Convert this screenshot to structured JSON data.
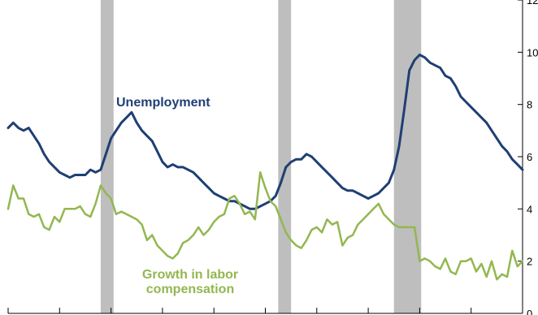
{
  "chart_data": {
    "type": "line",
    "title": "",
    "xlabel": "",
    "ylabel": "",
    "ylim": [
      0,
      12
    ],
    "yticks": [
      0,
      2,
      4,
      6,
      8,
      10,
      12
    ],
    "ytick_labels": [
      "0",
      "2",
      "4",
      "6",
      "8",
      "10",
      "12"
    ],
    "xlim": [
      0,
      100
    ],
    "x_major_ticks": [
      0,
      10,
      20,
      30,
      40,
      50,
      60,
      70,
      80,
      90,
      100
    ],
    "recession_bands": [
      [
        18,
        20.5
      ],
      [
        52.5,
        55
      ],
      [
        75,
        80.3
      ]
    ],
    "recession_color": "#bebebe",
    "series": [
      {
        "name": "Unemployment",
        "color": "#1f3f73",
        "x": [
          0,
          1,
          2,
          3,
          4,
          5,
          6,
          7,
          8,
          9,
          10,
          11,
          12,
          13,
          14,
          15,
          16,
          17,
          18,
          19,
          20,
          21,
          22,
          23,
          24,
          25,
          26,
          27,
          28,
          29,
          30,
          31,
          32,
          33,
          34,
          35,
          36,
          37,
          38,
          39,
          40,
          41,
          42,
          43,
          44,
          45,
          46,
          47,
          48,
          49,
          50,
          51,
          52,
          53,
          54,
          55,
          56,
          57,
          58,
          59,
          60,
          61,
          62,
          63,
          64,
          65,
          66,
          67,
          68,
          69,
          70,
          71,
          72,
          73,
          74,
          75,
          76,
          77,
          78,
          79,
          80,
          81,
          82,
          83,
          84,
          85,
          86,
          87,
          88,
          89,
          90,
          91,
          92,
          93,
          94,
          95,
          96,
          97,
          98,
          99,
          100
        ],
        "values": [
          7.1,
          7.3,
          7.1,
          7.0,
          7.1,
          6.8,
          6.5,
          6.1,
          5.8,
          5.6,
          5.4,
          5.3,
          5.2,
          5.3,
          5.3,
          5.3,
          5.5,
          5.4,
          5.5,
          6.1,
          6.7,
          7.0,
          7.3,
          7.5,
          7.7,
          7.3,
          7.0,
          6.8,
          6.6,
          6.2,
          5.8,
          5.6,
          5.7,
          5.6,
          5.6,
          5.5,
          5.4,
          5.2,
          5.0,
          4.8,
          4.6,
          4.5,
          4.4,
          4.3,
          4.3,
          4.2,
          4.1,
          4.0,
          4.0,
          4.1,
          4.2,
          4.3,
          4.5,
          5.0,
          5.6,
          5.8,
          5.9,
          5.9,
          6.1,
          6.0,
          5.8,
          5.6,
          5.4,
          5.2,
          5.0,
          4.8,
          4.7,
          4.7,
          4.6,
          4.5,
          4.4,
          4.5,
          4.6,
          4.8,
          5.0,
          5.5,
          6.4,
          7.8,
          9.3,
          9.7,
          9.9,
          9.8,
          9.6,
          9.5,
          9.4,
          9.1,
          9.0,
          8.7,
          8.3,
          8.1,
          7.9,
          7.7,
          7.5,
          7.3,
          7.0,
          6.7,
          6.4,
          6.2,
          5.9,
          5.7,
          5.5
        ]
      },
      {
        "name": "Growth in labor compensation",
        "color": "#93b750",
        "x": [
          0,
          1,
          2,
          3,
          4,
          5,
          6,
          7,
          8,
          9,
          10,
          11,
          12,
          13,
          14,
          15,
          16,
          17,
          18,
          19,
          20,
          21,
          22,
          23,
          24,
          25,
          26,
          27,
          28,
          29,
          30,
          31,
          32,
          33,
          34,
          35,
          36,
          37,
          38,
          39,
          40,
          41,
          42,
          43,
          44,
          45,
          46,
          47,
          48,
          49,
          50,
          51,
          52,
          53,
          54,
          55,
          56,
          57,
          58,
          59,
          60,
          61,
          62,
          63,
          64,
          65,
          66,
          67,
          68,
          69,
          70,
          71,
          72,
          73,
          74,
          75,
          76,
          77,
          78,
          79,
          80,
          81,
          82,
          83,
          84,
          85,
          86,
          87,
          88,
          89,
          90,
          91,
          92,
          93,
          94,
          95,
          96,
          97,
          98,
          99,
          100
        ],
        "values": [
          4.0,
          4.9,
          4.4,
          4.4,
          3.8,
          3.7,
          3.8,
          3.3,
          3.2,
          3.7,
          3.5,
          4.0,
          4.0,
          4.0,
          4.1,
          3.8,
          3.7,
          4.2,
          4.9,
          4.6,
          4.4,
          3.8,
          3.9,
          3.8,
          3.7,
          3.6,
          3.4,
          2.8,
          3.0,
          2.6,
          2.4,
          2.2,
          2.1,
          2.3,
          2.7,
          2.8,
          3.0,
          3.3,
          3.0,
          3.2,
          3.5,
          3.7,
          3.8,
          4.4,
          4.5,
          4.2,
          3.8,
          3.9,
          3.6,
          5.4,
          4.8,
          4.3,
          4.1,
          3.6,
          3.1,
          2.8,
          2.6,
          2.5,
          2.8,
          3.2,
          3.3,
          3.1,
          3.6,
          3.4,
          3.5,
          2.6,
          2.9,
          3.0,
          3.4,
          3.6,
          3.8,
          4.0,
          4.2,
          3.8,
          3.6,
          3.4,
          3.3,
          3.3,
          3.3,
          3.3,
          2.0,
          2.1,
          2.0,
          1.8,
          1.7,
          2.1,
          1.6,
          1.5,
          2.0,
          2.0,
          2.1,
          1.6,
          1.9,
          1.4,
          2.0,
          1.3,
          1.5,
          1.4,
          2.4,
          1.8,
          2.0
        ]
      }
    ]
  },
  "labels": {
    "unemployment": "Unemployment",
    "growth_line1": "Growth in labor",
    "growth_line2": "compensation"
  }
}
